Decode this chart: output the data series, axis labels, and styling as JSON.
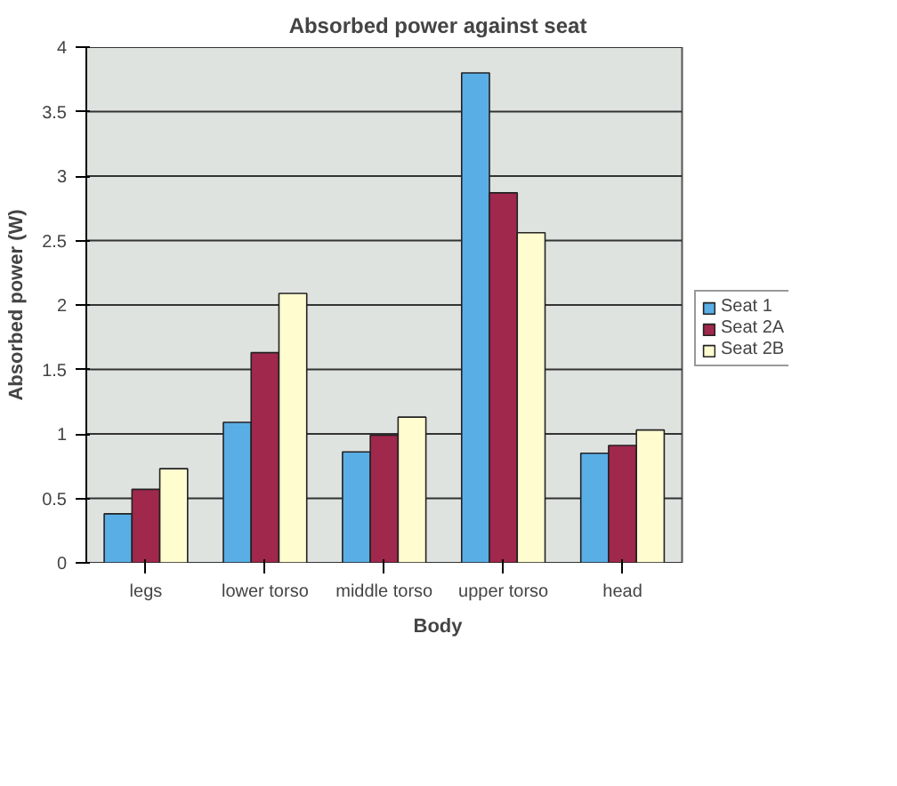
{
  "chart_data": {
    "type": "bar",
    "title": "Absorbed power against seat",
    "xlabel": "Body",
    "ylabel": "Absorbed power (W)",
    "categories": [
      "legs",
      "lower torso",
      "middle torso",
      "upper torso",
      "head"
    ],
    "series": [
      {
        "name": "Seat 1",
        "color": "#5aaee6",
        "values": [
          0.38,
          1.09,
          0.86,
          3.8,
          0.85
        ]
      },
      {
        "name": "Seat 2A",
        "color": "#a0284c",
        "values": [
          0.57,
          1.63,
          0.99,
          2.87,
          0.91
        ]
      },
      {
        "name": "Seat 2B",
        "color": "#fffcd0",
        "values": [
          0.73,
          2.09,
          1.13,
          2.56,
          1.03
        ]
      }
    ],
    "ylim": [
      0,
      4
    ],
    "yticks": [
      0,
      0.5,
      1,
      1.5,
      2,
      2.5,
      3,
      3.5,
      4
    ],
    "grid": "y",
    "legend": "right"
  }
}
